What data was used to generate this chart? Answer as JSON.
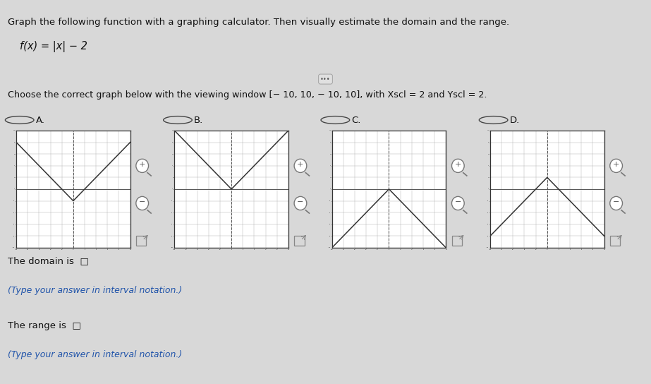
{
  "title_line1": "Graph the following function with a graphing calculator. Then visually estimate the domain and the range.",
  "function_label": "f(x) = |x| − 2",
  "choose_text": "Choose the correct graph below with the viewing window [− 10, 10, − 10, 10], with Xscl = 2 and Yscl = 2.",
  "options": [
    "A.",
    "B.",
    "C.",
    "D."
  ],
  "domain_label": "The domain is",
  "range_label": "The range is",
  "type_text": "(Type your answer in interval notation.)",
  "bg_color": "#d8d8d8",
  "header_bg": "#cc0000",
  "graph_bg": "#ffffff",
  "graph_border": "#333333",
  "line_color": "#333333",
  "axis_color": "#555555",
  "grid_color": "#aaaaaa",
  "xmin": -10,
  "xmax": 10,
  "ymin": -10,
  "ymax": 10,
  "xscl": 2,
  "yscl": 2,
  "graphs": [
    {
      "type": "abs_minus2"
    },
    {
      "type": "abs_vertex0"
    },
    {
      "type": "neg_abs"
    },
    {
      "type": "neg_abs_plus2"
    }
  ]
}
